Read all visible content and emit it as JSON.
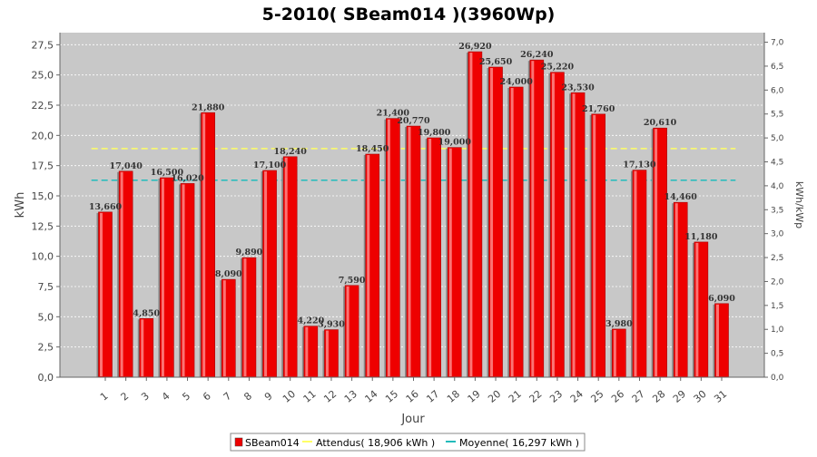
{
  "chart_data": {
    "type": "bar",
    "title": "5-2010( SBeam014 )(3960Wp)",
    "xlabel": "Jour",
    "ylabel": "kWh",
    "ylabel_right": "kWh/kWp",
    "ylim": [
      0,
      28.5
    ],
    "ylim_right": [
      0,
      7.2
    ],
    "yticks": [
      "0,0",
      "2,5",
      "5,0",
      "7,5",
      "10,0",
      "12,5",
      "15,0",
      "17,5",
      "20,0",
      "22,5",
      "25,0",
      "27,5"
    ],
    "yticks_right": [
      "0,0",
      "0,5",
      "1,0",
      "1,5",
      "2,0",
      "2,5",
      "3,0",
      "3,5",
      "4,0",
      "4,5",
      "5,0",
      "5,5",
      "6,0",
      "6,5",
      "7,0"
    ],
    "categories": [
      "1",
      "2",
      "3",
      "4",
      "5",
      "6",
      "7",
      "8",
      "9",
      "10",
      "11",
      "12",
      "13",
      "14",
      "15",
      "16",
      "17",
      "18",
      "19",
      "20",
      "21",
      "22",
      "23",
      "24",
      "25",
      "26",
      "27",
      "28",
      "29",
      "30",
      "31"
    ],
    "series": [
      {
        "name": "SBeam014",
        "color": "#ee0000",
        "values": [
          13.66,
          17.04,
          4.85,
          16.5,
          16.02,
          21.88,
          8.09,
          9.89,
          17.1,
          18.24,
          4.22,
          3.93,
          7.59,
          18.45,
          21.4,
          20.77,
          19.8,
          19.0,
          26.92,
          25.65,
          24.0,
          26.24,
          25.22,
          23.53,
          21.76,
          3.98,
          17.13,
          20.61,
          14.46,
          11.18,
          6.09
        ],
        "labels": [
          "13,660",
          "17,040",
          "4,850",
          "16,500",
          "16,020",
          "21,880",
          "8,090",
          "9,890",
          "17,100",
          "18,240",
          "4,220",
          "3,930",
          "7,590",
          "18,450",
          "21,400",
          "20,770",
          "19,800",
          "19,000",
          "26,920",
          "25,650",
          "24,000",
          "26,240",
          "25,220",
          "23,530",
          "21,760",
          "3,980",
          "17,130",
          "20,610",
          "14,460",
          "11,180",
          "6,090"
        ]
      }
    ],
    "reference_lines": [
      {
        "name": "Attendus( 18,906 kWh )",
        "value": 18.906,
        "color": "#ffff66"
      },
      {
        "name": "Moyenne( 16,297 kWh )",
        "value": 16.297,
        "color": "#22bbbb"
      }
    ],
    "grid": true,
    "legend_position": "bottom"
  }
}
